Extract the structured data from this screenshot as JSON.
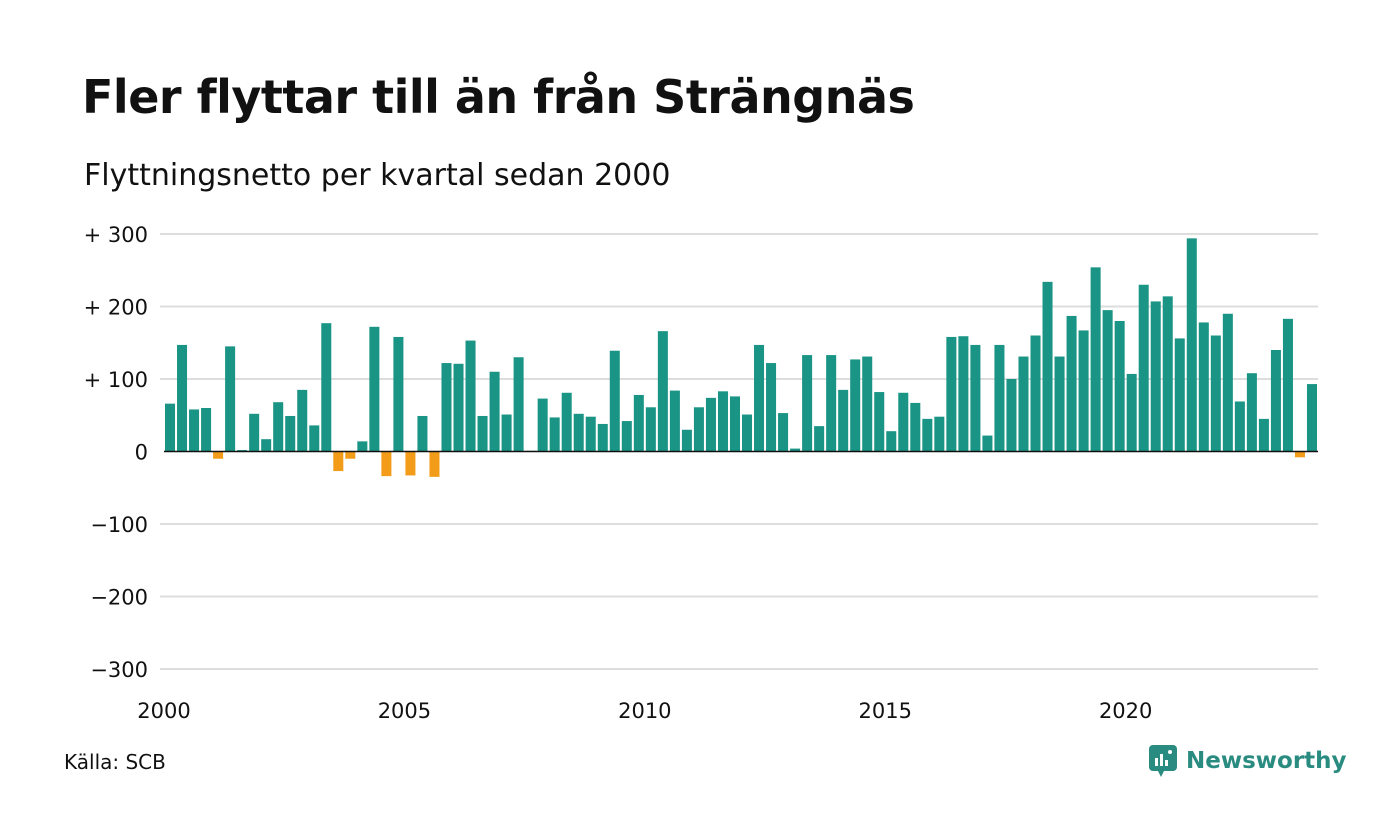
{
  "title": "Fler flyttar till än från Strängnäs",
  "subtitle": "Flyttningsnetto per kvartal sedan 2000",
  "source": "Källa: SCB",
  "brand": "Newsworthy",
  "colors": {
    "positive": "#1a9485",
    "negative": "#f39c1a",
    "grid": "#dddddd",
    "brand": "#2a8c80"
  },
  "chart_data": {
    "type": "bar",
    "title": "Fler flyttar till än från Strängnäs",
    "subtitle": "Flyttningsnetto per kvartal sedan 2000",
    "xlabel": "",
    "ylabel": "",
    "ylim": [
      -300,
      300
    ],
    "yticks": [
      300,
      200,
      100,
      0,
      -100,
      -200,
      -300
    ],
    "ytick_labels": [
      "+ 300",
      "+ 200",
      "+ 100",
      "0",
      "−100",
      "−200",
      "−300"
    ],
    "xticks": [
      2000,
      2005,
      2010,
      2015,
      2020
    ],
    "xtick_labels": [
      "2000",
      "2005",
      "2010",
      "2015",
      "2020"
    ],
    "x_start": 2000,
    "grid": true,
    "values": [
      66,
      147,
      58,
      60,
      -10,
      145,
      2,
      52,
      17,
      68,
      49,
      85,
      36,
      177,
      -27,
      -10,
      14,
      172,
      -34,
      158,
      -33,
      49,
      -35,
      122,
      121,
      153,
      49,
      110,
      51,
      130,
      1,
      73,
      47,
      81,
      52,
      48,
      38,
      139,
      42,
      78,
      61,
      166,
      84,
      30,
      61,
      74,
      83,
      76,
      51,
      147,
      122,
      53,
      4,
      133,
      35,
      133,
      85,
      127,
      131,
      82,
      28,
      81,
      67,
      45,
      48,
      158,
      159,
      147,
      22,
      147,
      100,
      131,
      160,
      234,
      131,
      187,
      167,
      254,
      195,
      180,
      107,
      230,
      207,
      214,
      156,
      294,
      178,
      160,
      190,
      69,
      108,
      45,
      140,
      183,
      -8,
      93
    ]
  }
}
